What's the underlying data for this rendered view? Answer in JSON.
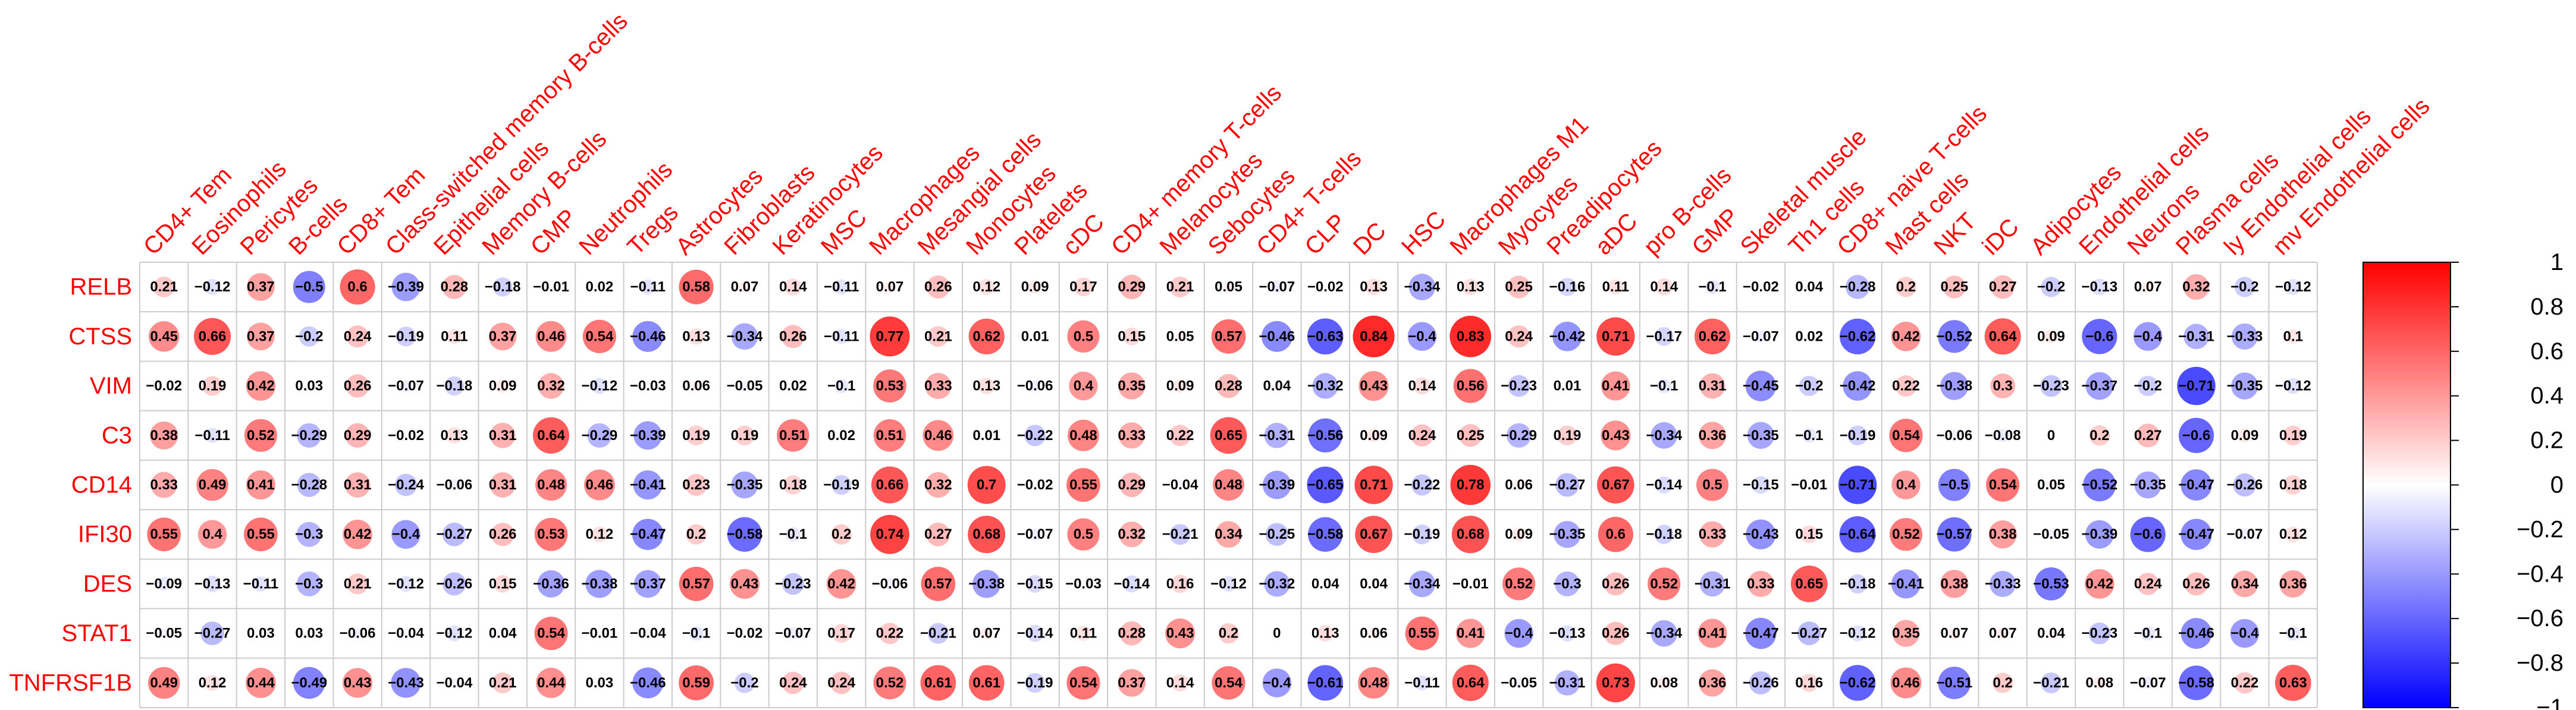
{
  "chart_data": {
    "type": "heatmap",
    "style": "circle correlation matrix",
    "rows": [
      "RELB",
      "CTSS",
      "VIM",
      "C3",
      "CD14",
      "IFI30",
      "DES",
      "STAT1",
      "TNFRSF1B"
    ],
    "columns": [
      "CD4+ Tem",
      "Eosinophils",
      "Pericytes",
      "B-cells",
      "CD8+ Tem",
      "Class-switched memory B-cells",
      "Epithelial cells",
      "Memory B-cells",
      "CMP",
      "Neutrophils",
      "Tregs",
      "Astrocytes",
      "Fibroblasts",
      "Keratinocytes",
      "MSC",
      "Macrophages",
      "Mesangial cells",
      "Monocytes",
      "Platelets",
      "cDC",
      "CD4+ memory T-cells",
      "Melanocytes",
      "Sebocytes",
      "CD4+ T-cells",
      "CLP",
      "DC",
      "HSC",
      "Macrophages M1",
      "Myocytes",
      "Preadipocytes",
      "aDC",
      "pro B-cells",
      "GMP",
      "Skeletal muscle",
      "Th1 cells",
      "CD8+ naive T-cells",
      "Mast cells",
      "NKT",
      "iDC",
      "Adipocytes",
      "Endothelial cells",
      "Neurons",
      "Plasma cells",
      "ly Endothelial cells",
      "mv Endothelial cells"
    ],
    "values": [
      [
        0.21,
        -0.12,
        0.37,
        -0.5,
        0.6,
        -0.39,
        0.28,
        -0.18,
        -0.01,
        0.02,
        -0.11,
        0.58,
        0.07,
        0.14,
        -0.11,
        0.07,
        0.26,
        0.12,
        0.09,
        0.17,
        0.29,
        0.21,
        0.05,
        -0.07,
        -0.02,
        0.13,
        -0.34,
        0.13,
        0.25,
        -0.16,
        0.11,
        0.14,
        -0.1,
        -0.02,
        0.04,
        -0.28,
        0.2,
        0.25,
        0.27,
        -0.2,
        -0.13,
        0.07,
        0.32,
        -0.2,
        -0.12
      ],
      [
        0.45,
        0.66,
        0.37,
        -0.2,
        0.24,
        -0.19,
        0.11,
        0.37,
        0.46,
        0.54,
        -0.46,
        0.13,
        -0.34,
        0.26,
        -0.11,
        0.77,
        0.21,
        0.62,
        0.01,
        0.5,
        0.15,
        0.05,
        0.57,
        -0.46,
        -0.63,
        0.84,
        -0.4,
        0.83,
        0.24,
        -0.42,
        0.71,
        -0.17,
        0.62,
        -0.07,
        0.02,
        -0.62,
        0.42,
        -0.52,
        0.64,
        0.09,
        -0.6,
        -0.4,
        -0.31,
        -0.33,
        0.1
      ],
      [
        -0.02,
        0.19,
        0.42,
        0.03,
        0.26,
        -0.07,
        -0.18,
        0.09,
        0.32,
        -0.12,
        -0.03,
        0.06,
        -0.05,
        0.02,
        -0.1,
        0.53,
        0.33,
        0.13,
        -0.06,
        0.4,
        0.35,
        0.09,
        0.28,
        0.04,
        -0.32,
        0.43,
        0.14,
        0.56,
        -0.23,
        0.01,
        0.41,
        -0.1,
        0.31,
        -0.45,
        -0.2,
        -0.42,
        0.22,
        -0.38,
        0.3,
        -0.23,
        -0.37,
        -0.2,
        -0.71,
        -0.35,
        -0.12
      ],
      [
        0.38,
        -0.11,
        0.52,
        -0.29,
        0.29,
        -0.02,
        0.13,
        0.31,
        0.64,
        -0.29,
        -0.39,
        0.19,
        0.19,
        0.51,
        0.02,
        0.51,
        0.46,
        0.01,
        -0.22,
        0.48,
        0.33,
        0.22,
        0.65,
        -0.31,
        -0.56,
        0.09,
        0.24,
        0.25,
        -0.29,
        0.19,
        0.43,
        -0.34,
        0.36,
        -0.35,
        -0.1,
        -0.19,
        0.54,
        -0.06,
        -0.08,
        0,
        0.2,
        0.27,
        -0.6,
        0.09,
        0.19
      ],
      [
        0.33,
        0.49,
        0.41,
        -0.28,
        0.31,
        -0.24,
        -0.06,
        0.31,
        0.48,
        0.46,
        -0.41,
        0.23,
        -0.35,
        0.18,
        -0.19,
        0.66,
        0.32,
        0.7,
        -0.02,
        0.55,
        0.29,
        -0.04,
        0.48,
        -0.39,
        -0.65,
        0.71,
        -0.22,
        0.78,
        0.06,
        -0.27,
        0.67,
        -0.14,
        0.5,
        -0.15,
        -0.01,
        -0.71,
        0.4,
        -0.5,
        0.54,
        0.05,
        -0.52,
        -0.35,
        -0.47,
        -0.26,
        0.18
      ],
      [
        0.55,
        0.4,
        0.55,
        -0.3,
        0.42,
        -0.4,
        -0.27,
        0.26,
        0.53,
        0.12,
        -0.47,
        0.2,
        -0.58,
        -0.1,
        0.2,
        0.74,
        0.27,
        0.68,
        -0.07,
        0.5,
        0.32,
        -0.21,
        0.34,
        -0.25,
        -0.58,
        0.67,
        -0.19,
        0.68,
        0.09,
        -0.35,
        0.6,
        -0.18,
        0.33,
        -0.43,
        0.15,
        -0.64,
        0.52,
        -0.57,
        0.38,
        -0.05,
        -0.39,
        -0.6,
        -0.47,
        -0.07,
        0.12
      ],
      [
        -0.09,
        -0.13,
        -0.11,
        -0.3,
        0.21,
        -0.12,
        -0.26,
        0.15,
        -0.36,
        -0.38,
        -0.37,
        0.57,
        0.43,
        -0.23,
        0.42,
        -0.06,
        0.57,
        -0.38,
        -0.15,
        -0.03,
        -0.14,
        0.16,
        -0.12,
        -0.32,
        0.04,
        0.04,
        -0.34,
        -0.01,
        0.52,
        -0.3,
        0.26,
        0.52,
        -0.31,
        0.33,
        0.65,
        -0.18,
        -0.41,
        0.38,
        -0.33,
        -0.53,
        0.42,
        0.24,
        0.26,
        0.34,
        0.36
      ],
      [
        -0.05,
        -0.27,
        0.03,
        0.03,
        -0.06,
        -0.04,
        -0.12,
        0.04,
        0.54,
        -0.01,
        -0.04,
        -0.1,
        -0.02,
        -0.07,
        0.17,
        0.22,
        -0.21,
        0.07,
        -0.14,
        0.11,
        0.28,
        0.43,
        0.2,
        0,
        0.13,
        0.06,
        0.55,
        0.41,
        -0.4,
        -0.13,
        0.26,
        -0.34,
        0.41,
        -0.47,
        -0.27,
        -0.12,
        0.35,
        0.07,
        0.07,
        0.04,
        -0.23,
        -0.1,
        -0.46,
        -0.4,
        -0.1
      ],
      [
        0.49,
        0.12,
        0.44,
        -0.49,
        0.43,
        -0.43,
        -0.04,
        0.21,
        0.44,
        0.03,
        -0.46,
        0.59,
        -0.2,
        0.24,
        0.24,
        0.52,
        0.61,
        0.61,
        -0.19,
        0.54,
        0.37,
        0.14,
        0.54,
        -0.4,
        -0.61,
        0.48,
        -0.11,
        0.64,
        -0.05,
        -0.31,
        0.73,
        0.08,
        0.36,
        -0.26,
        0.16,
        -0.62,
        0.46,
        -0.51,
        0.2,
        -0.21,
        0.08,
        -0.07,
        -0.58,
        0.22,
        0.63
      ]
    ],
    "value_range": [
      -1,
      1
    ],
    "colorbar_ticks": [
      "1",
      "0.8",
      "0.6",
      "0.4",
      "0.2",
      "0",
      "−0.2",
      "−0.4",
      "−0.6",
      "−0.8",
      "−1"
    ],
    "colors": {
      "positive": "#ff0000",
      "neutral": "#ffffff",
      "negative": "#0000ff",
      "labels": "#ff0000",
      "grid": "#cccccc",
      "value_text": "#000000"
    },
    "legend": "right colorbar"
  }
}
